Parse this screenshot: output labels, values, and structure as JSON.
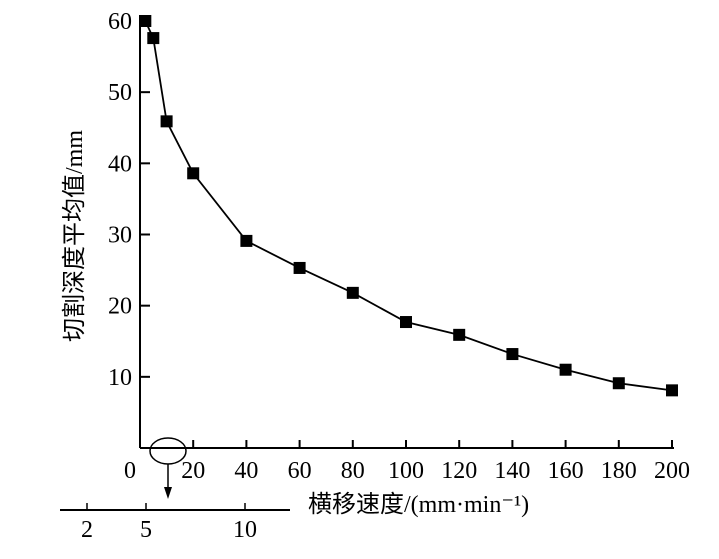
{
  "chart_data": {
    "type": "line",
    "title": "",
    "xlabel": "横移速度/(mm·min⁻¹)",
    "ylabel": "切割深度平均值/mm",
    "xlim": [
      0,
      200
    ],
    "ylim": [
      0,
      60
    ],
    "x_ticks": [
      "0",
      "20",
      "40",
      "60",
      "80",
      "100",
      "120",
      "140",
      "160",
      "180",
      "200"
    ],
    "y_ticks": [
      "10",
      "20",
      "30",
      "40",
      "50",
      "60"
    ],
    "grid": false,
    "marker": "square",
    "color": "#000000",
    "x": [
      2,
      5,
      10,
      20,
      40,
      60,
      80,
      100,
      120,
      140,
      160,
      180,
      200
    ],
    "y": [
      60,
      57.6,
      45.9,
      38.6,
      29.1,
      25.3,
      21.8,
      17.7,
      15.9,
      13.2,
      11.0,
      9.1,
      8.1
    ],
    "inset_axis": {
      "ticks": [
        "2",
        "5",
        "10"
      ],
      "annotation": "circle with arrow magnifying low-speed region"
    }
  }
}
